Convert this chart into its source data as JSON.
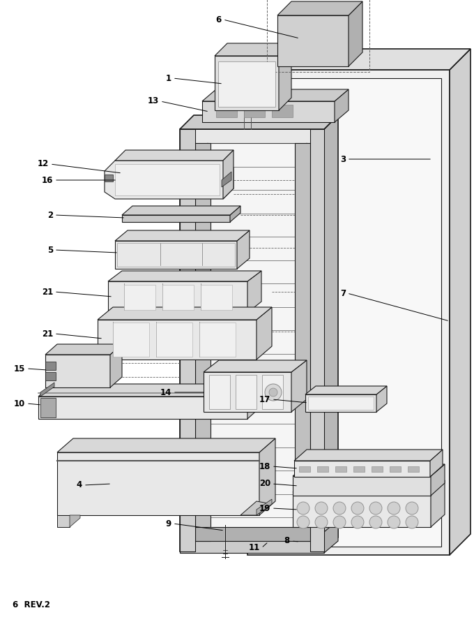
{
  "footer": "6  REV.2",
  "bg": "#ffffff",
  "lc": "#1a1a1a",
  "fig_width": 6.8,
  "fig_height": 8.91,
  "dpi": 100
}
